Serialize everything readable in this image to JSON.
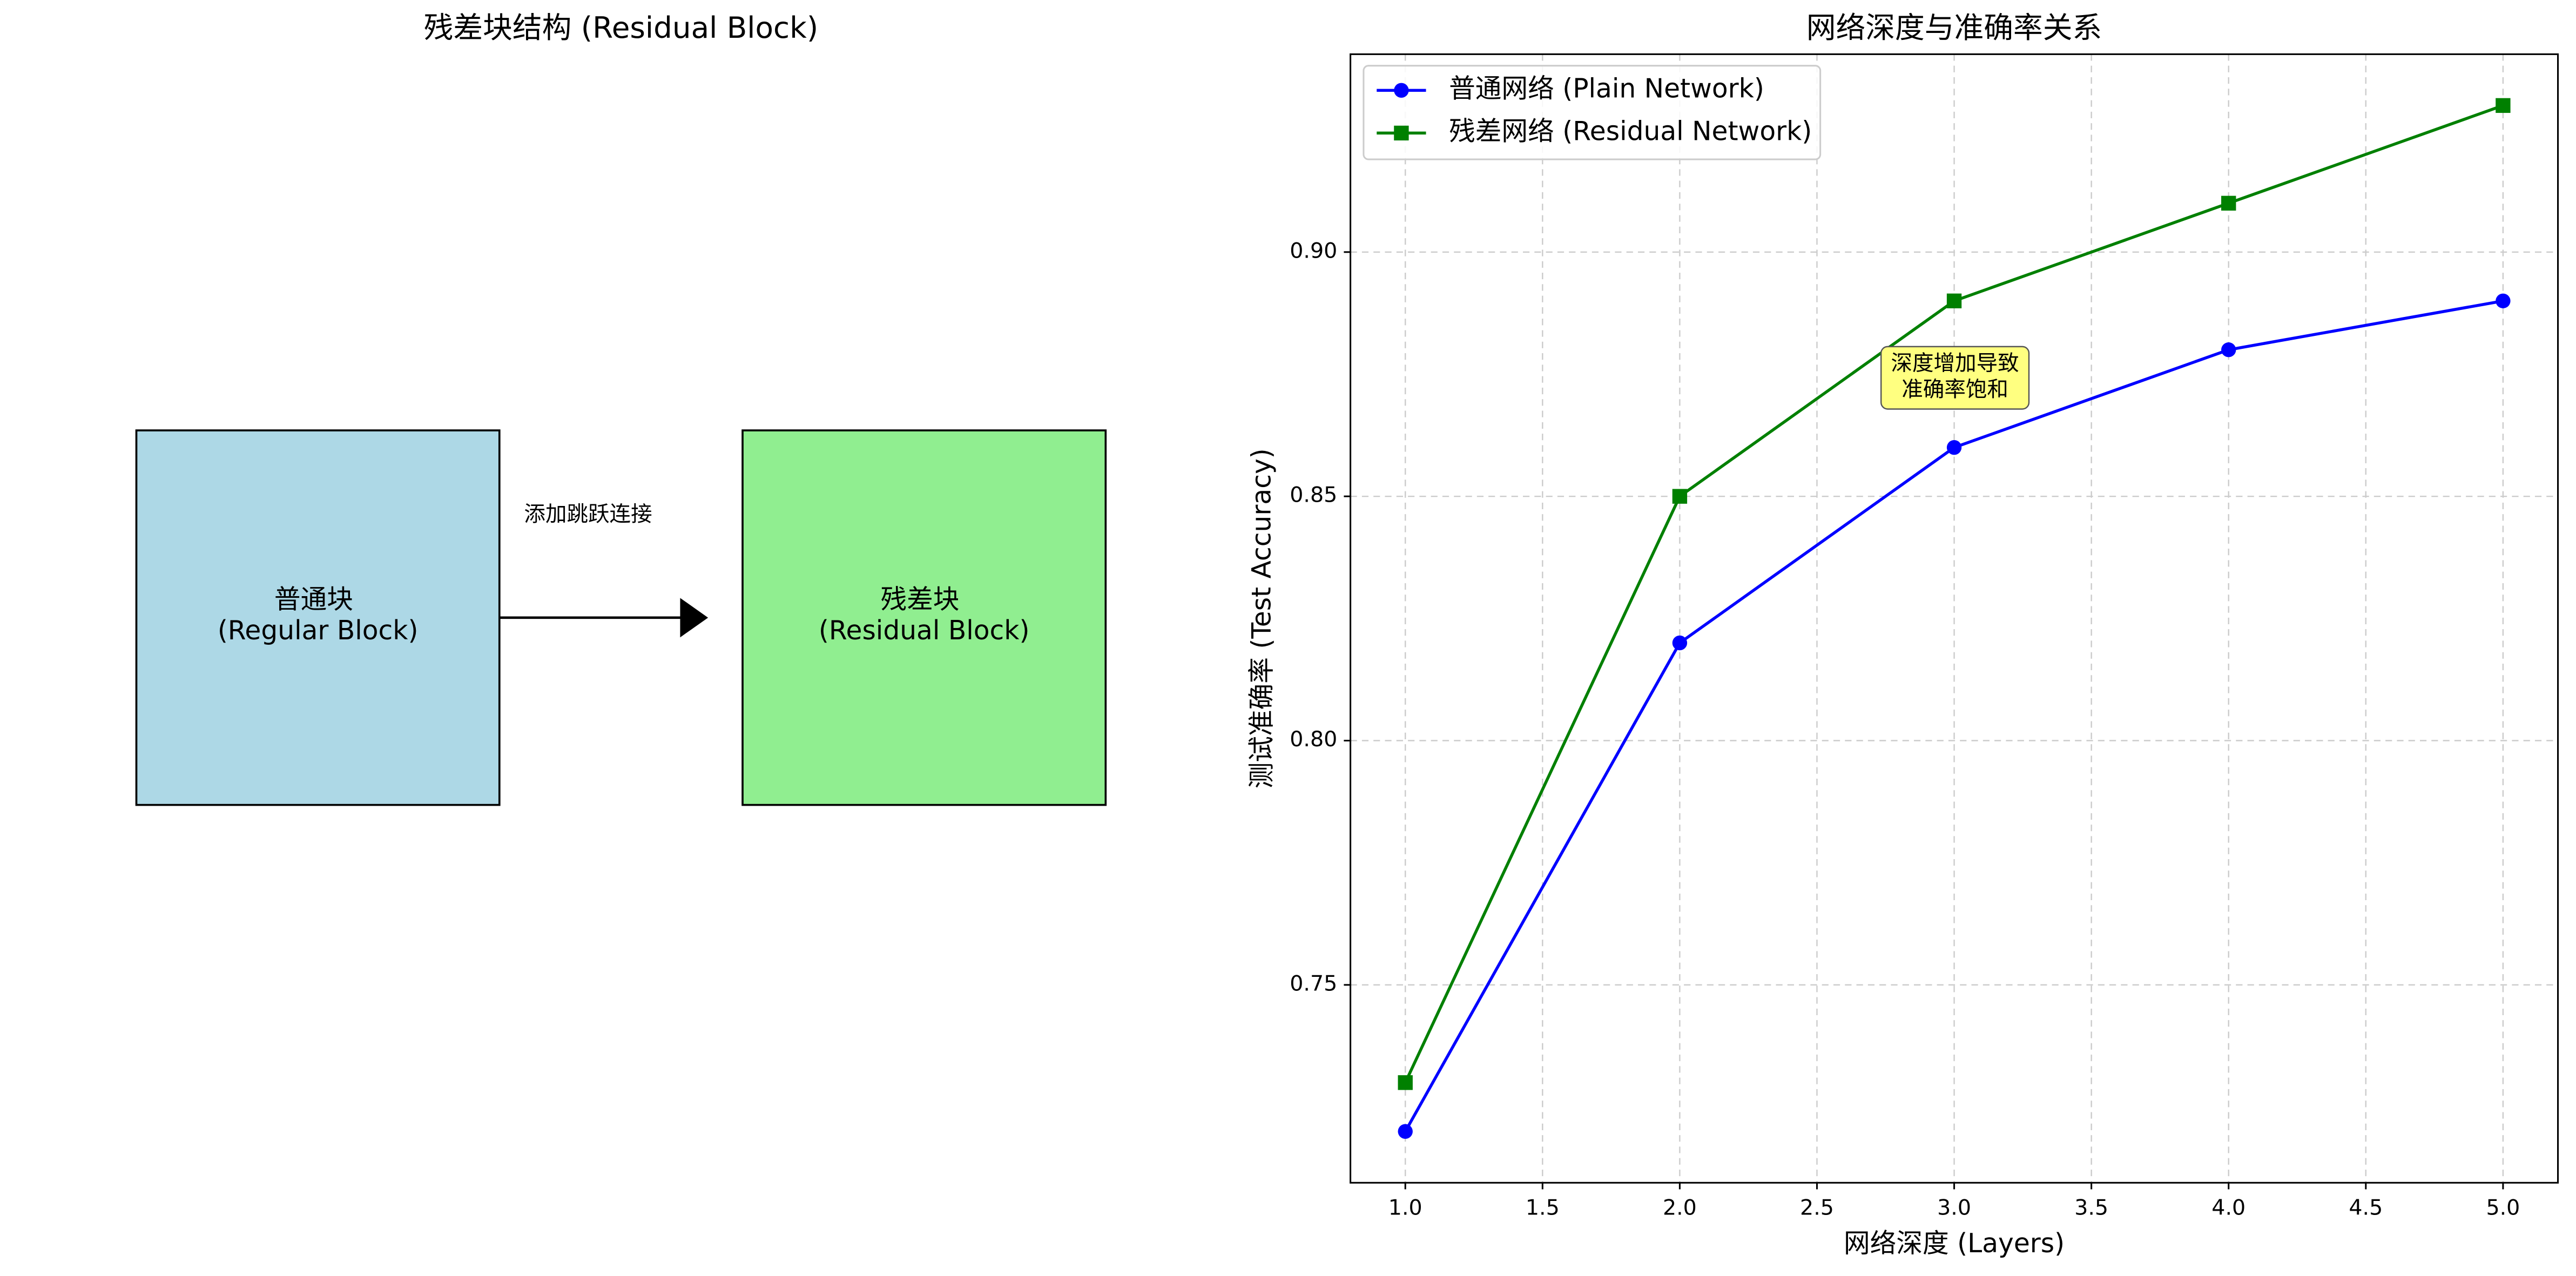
{
  "diagram": {
    "title": "残差块结构 (Residual Block)",
    "nodes": [
      {
        "label": [
          "普通块",
          "(Regular Block)"
        ],
        "color": "#add8e6"
      },
      {
        "label": [
          "残差块",
          "(Residual Block)"
        ],
        "color": "#90ee90"
      }
    ],
    "edge": {
      "label": "添加跳跃连接"
    }
  },
  "chart_data": {
    "type": "line",
    "title": "网络深度与准确率关系",
    "xlabel": "网络深度 (Layers)",
    "ylabel": "测试准确率 (Test Accuracy)",
    "x": [
      1,
      2,
      3,
      4,
      5
    ],
    "series": [
      {
        "name": "普通网络 (Plain Network)",
        "color": "#0000ff",
        "marker": "circle",
        "values": [
          0.72,
          0.82,
          0.86,
          0.88,
          0.89
        ]
      },
      {
        "name": "残差网络 (Residual Network)",
        "color": "#008000",
        "marker": "square",
        "values": [
          0.73,
          0.85,
          0.89,
          0.91,
          0.93
        ]
      }
    ],
    "xlim": [
      0.8,
      5.2
    ],
    "xticks": [
      {
        "value": 1,
        "label": "1.0"
      },
      1.5,
      {
        "value": 2,
        "label": "2.0"
      },
      2.5,
      {
        "value": 3,
        "label": "3.0"
      },
      3.5,
      {
        "value": 4,
        "label": "4.0"
      },
      4.5,
      {
        "value": 5,
        "label": "5.0"
      }
    ],
    "ylim": [
      0.7095,
      0.9405
    ],
    "yticks": [
      0.75,
      {
        "value": 0.8,
        "label": "0.80"
      },
      0.85,
      {
        "value": 0.9,
        "label": "0.90"
      }
    ],
    "grid": true,
    "legend": "upper left",
    "annotation": [
      "深度增加导致",
      "准确率饱和"
    ]
  }
}
